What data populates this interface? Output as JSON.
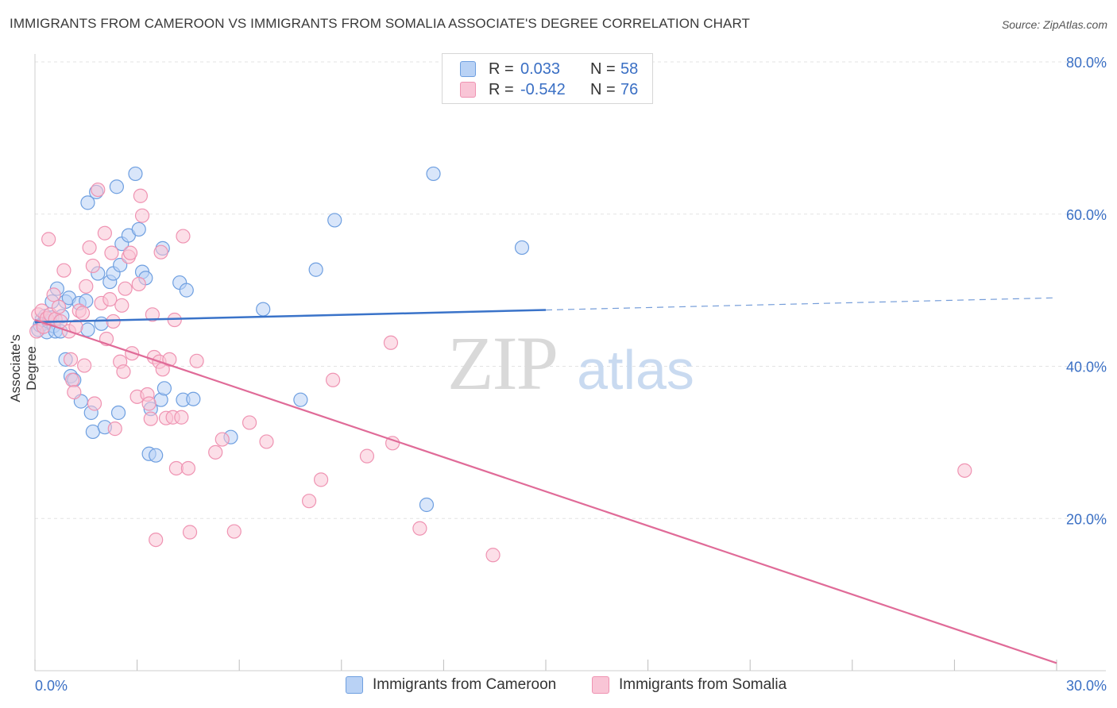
{
  "header": {
    "title": "IMMIGRANTS FROM CAMEROON VS IMMIGRANTS FROM SOMALIA ASSOCIATE'S DEGREE CORRELATION CHART",
    "source": "Source: ZipAtlas.com"
  },
  "legend": {
    "rows": [
      {
        "r_label": "R =",
        "r_value": "0.033",
        "n_label": "N =",
        "n_value": "58"
      },
      {
        "r_label": "R =",
        "r_value": "-0.542",
        "n_label": "N =",
        "n_value": "76"
      }
    ]
  },
  "watermark": {
    "zip": "ZIP",
    "atlas": "atlas"
  },
  "colors": {
    "cameroon_fill": "#b9d2f5",
    "cameroon_stroke": "#6e9fe0",
    "cameroon_line": "#3a73c9",
    "somalia_fill": "#f9c5d6",
    "somalia_stroke": "#ef93b2",
    "somalia_line": "#e06b98",
    "tick_label": "#3a6fc4"
  },
  "chart_data": {
    "type": "scatter",
    "title": "IMMIGRANTS FROM CAMEROON VS IMMIGRANTS FROM SOMALIA ASSOCIATE'S DEGREE CORRELATION CHART",
    "xlabel": "",
    "ylabel": "Associate's Degree",
    "xlim": [
      0,
      30
    ],
    "ylim": [
      0,
      80
    ],
    "x_tick_labels": [
      "0.0%",
      "30.0%"
    ],
    "y_ticks": [
      20,
      40,
      60,
      80
    ],
    "y_tick_labels": [
      "20.0%",
      "40.0%",
      "60.0%",
      "80.0%"
    ],
    "grid": true,
    "legend_position": "bottom",
    "series": [
      {
        "name": "Immigrants from Cameroon",
        "points": [
          [
            0.1,
            44.8
          ],
          [
            0.15,
            45.4
          ],
          [
            0.2,
            46.1
          ],
          [
            0.25,
            45.6
          ],
          [
            0.3,
            46.6
          ],
          [
            0.35,
            44.5
          ],
          [
            0.4,
            45.9
          ],
          [
            0.5,
            46.4
          ],
          [
            0.55,
            45.3
          ],
          [
            0.6,
            44.6
          ],
          [
            0.5,
            48.5
          ],
          [
            0.65,
            50.2
          ],
          [
            0.75,
            44.6
          ],
          [
            0.8,
            46.6
          ],
          [
            0.9,
            48.5
          ],
          [
            0.9,
            40.9
          ],
          [
            1.0,
            49.0
          ],
          [
            1.05,
            38.7
          ],
          [
            1.15,
            38.2
          ],
          [
            1.3,
            48.3
          ],
          [
            1.35,
            35.4
          ],
          [
            1.5,
            48.6
          ],
          [
            1.55,
            61.5
          ],
          [
            1.55,
            44.8
          ],
          [
            1.65,
            33.9
          ],
          [
            1.7,
            31.4
          ],
          [
            1.8,
            62.9
          ],
          [
            1.85,
            52.2
          ],
          [
            1.95,
            45.6
          ],
          [
            2.05,
            32.0
          ],
          [
            2.2,
            51.1
          ],
          [
            2.3,
            52.2
          ],
          [
            2.4,
            63.6
          ],
          [
            2.45,
            33.9
          ],
          [
            2.5,
            53.3
          ],
          [
            2.55,
            56.1
          ],
          [
            2.75,
            57.2
          ],
          [
            2.95,
            65.3
          ],
          [
            3.05,
            58.0
          ],
          [
            3.15,
            52.4
          ],
          [
            3.25,
            51.6
          ],
          [
            3.35,
            28.5
          ],
          [
            3.4,
            34.4
          ],
          [
            3.55,
            28.3
          ],
          [
            3.7,
            35.6
          ],
          [
            3.75,
            55.5
          ],
          [
            3.8,
            37.1
          ],
          [
            4.25,
            51.0
          ],
          [
            4.35,
            35.6
          ],
          [
            4.45,
            50.0
          ],
          [
            4.65,
            35.7
          ],
          [
            5.75,
            30.7
          ],
          [
            6.7,
            47.5
          ],
          [
            7.8,
            35.6
          ],
          [
            8.25,
            52.7
          ],
          [
            8.8,
            59.2
          ],
          [
            11.5,
            21.8
          ],
          [
            11.7,
            65.3
          ],
          [
            14.3,
            55.6
          ]
        ],
        "trend": {
          "x": [
            0,
            15
          ],
          "y": [
            45.8,
            47.4
          ],
          "dashed_extension": {
            "x": [
              15,
              30
            ],
            "y": [
              47.4,
              49.0
            ]
          }
        }
      },
      {
        "name": "Immigrants from Somalia",
        "points": [
          [
            0.05,
            44.6
          ],
          [
            0.1,
            46.8
          ],
          [
            0.2,
            47.3
          ],
          [
            0.25,
            45.2
          ],
          [
            0.35,
            46.3
          ],
          [
            0.4,
            56.7
          ],
          [
            0.45,
            46.8
          ],
          [
            0.55,
            49.4
          ],
          [
            0.6,
            46.2
          ],
          [
            0.7,
            47.8
          ],
          [
            0.75,
            45.9
          ],
          [
            0.85,
            52.6
          ],
          [
            1.0,
            44.6
          ],
          [
            1.05,
            40.9
          ],
          [
            1.1,
            38.2
          ],
          [
            1.15,
            36.6
          ],
          [
            1.2,
            45.2
          ],
          [
            1.3,
            47.3
          ],
          [
            1.4,
            47.0
          ],
          [
            1.45,
            40.1
          ],
          [
            1.5,
            50.5
          ],
          [
            1.6,
            55.6
          ],
          [
            1.7,
            53.2
          ],
          [
            1.75,
            35.1
          ],
          [
            1.85,
            63.2
          ],
          [
            1.95,
            48.3
          ],
          [
            2.05,
            57.5
          ],
          [
            2.1,
            43.6
          ],
          [
            2.2,
            48.8
          ],
          [
            2.25,
            54.9
          ],
          [
            2.35,
            31.8
          ],
          [
            2.5,
            40.6
          ],
          [
            2.55,
            48.0
          ],
          [
            2.6,
            39.3
          ],
          [
            2.65,
            50.2
          ],
          [
            2.75,
            54.4
          ],
          [
            2.8,
            54.9
          ],
          [
            2.85,
            41.7
          ],
          [
            3.0,
            36.0
          ],
          [
            3.05,
            50.8
          ],
          [
            3.1,
            62.4
          ],
          [
            3.15,
            59.8
          ],
          [
            3.3,
            36.3
          ],
          [
            3.35,
            35.1
          ],
          [
            3.4,
            33.1
          ],
          [
            3.45,
            46.8
          ],
          [
            3.5,
            41.2
          ],
          [
            3.55,
            17.2
          ],
          [
            3.65,
            40.6
          ],
          [
            3.7,
            55.0
          ],
          [
            3.75,
            39.6
          ],
          [
            3.85,
            33.2
          ],
          [
            3.95,
            40.9
          ],
          [
            4.05,
            33.3
          ],
          [
            4.1,
            46.1
          ],
          [
            4.15,
            26.6
          ],
          [
            4.3,
            33.3
          ],
          [
            4.35,
            57.1
          ],
          [
            4.5,
            26.6
          ],
          [
            4.55,
            18.2
          ],
          [
            4.75,
            40.7
          ],
          [
            5.3,
            28.7
          ],
          [
            5.5,
            30.4
          ],
          [
            5.85,
            18.3
          ],
          [
            6.3,
            32.6
          ],
          [
            6.8,
            30.1
          ],
          [
            8.05,
            22.3
          ],
          [
            8.4,
            25.1
          ],
          [
            8.75,
            38.2
          ],
          [
            9.75,
            28.2
          ],
          [
            10.45,
            43.1
          ],
          [
            10.5,
            29.9
          ],
          [
            11.3,
            18.7
          ],
          [
            13.45,
            15.2
          ],
          [
            27.3,
            26.3
          ],
          [
            2.3,
            45.9
          ]
        ],
        "trend": {
          "x": [
            0,
            30
          ],
          "y": [
            46.1,
            1.0
          ]
        }
      }
    ]
  }
}
